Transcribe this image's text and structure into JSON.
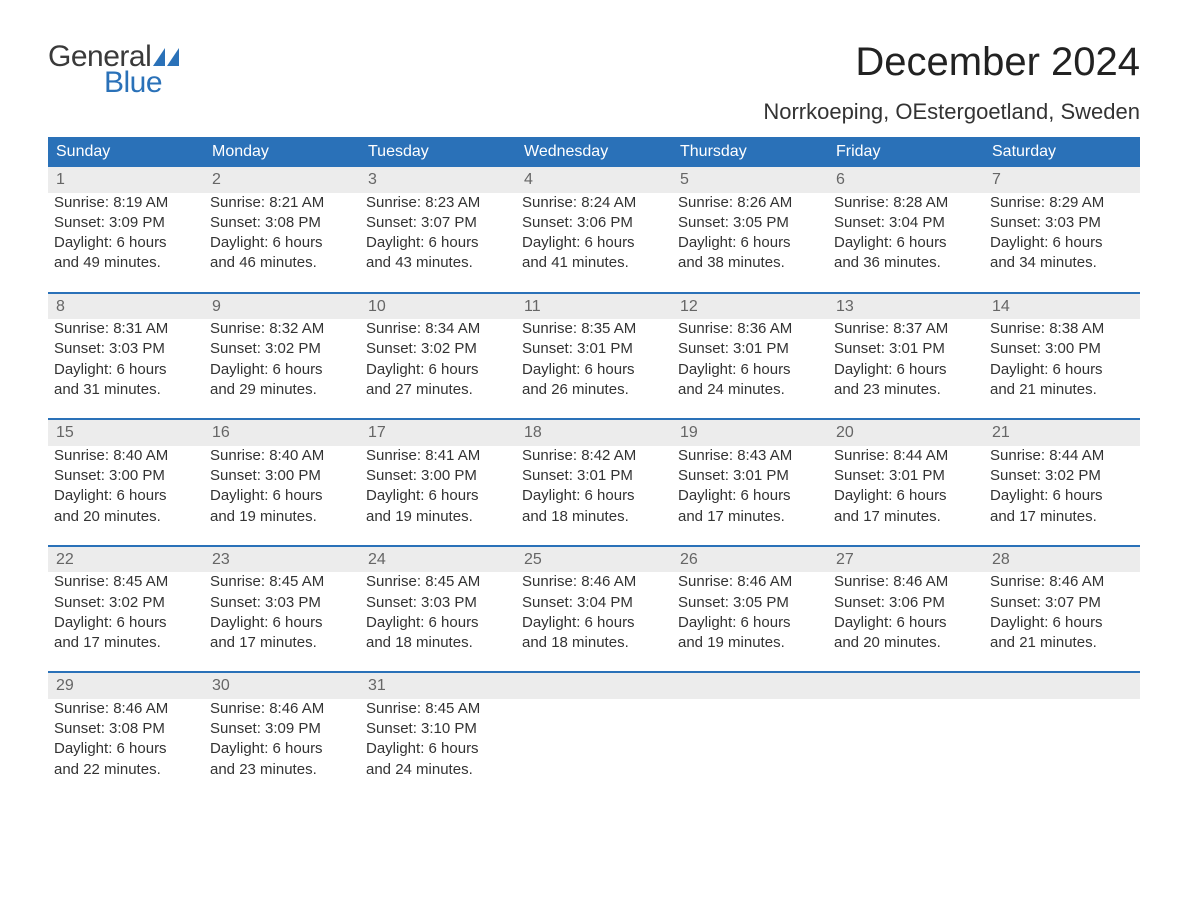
{
  "logo": {
    "text_general": "General",
    "text_blue": "Blue",
    "flag_color": "#2a71b8"
  },
  "title": "December 2024",
  "location": "Norrkoeping, OEstergoetland, Sweden",
  "colors": {
    "header_bg": "#2a71b8",
    "header_text": "#ffffff",
    "daynum_bg": "#ececec",
    "daynum_text": "#666666",
    "body_text": "#333333",
    "separator": "#2a71b8",
    "page_bg": "#ffffff"
  },
  "typography": {
    "title_fontsize": 40,
    "location_fontsize": 22,
    "header_fontsize": 16,
    "cell_fontsize": 15,
    "logo_fontsize": 30
  },
  "columns": [
    "Sunday",
    "Monday",
    "Tuesday",
    "Wednesday",
    "Thursday",
    "Friday",
    "Saturday"
  ],
  "weeks": [
    [
      {
        "day": "1",
        "sunrise": "Sunrise: 8:19 AM",
        "sunset": "Sunset: 3:09 PM",
        "dl1": "Daylight: 6 hours",
        "dl2": "and 49 minutes."
      },
      {
        "day": "2",
        "sunrise": "Sunrise: 8:21 AM",
        "sunset": "Sunset: 3:08 PM",
        "dl1": "Daylight: 6 hours",
        "dl2": "and 46 minutes."
      },
      {
        "day": "3",
        "sunrise": "Sunrise: 8:23 AM",
        "sunset": "Sunset: 3:07 PM",
        "dl1": "Daylight: 6 hours",
        "dl2": "and 43 minutes."
      },
      {
        "day": "4",
        "sunrise": "Sunrise: 8:24 AM",
        "sunset": "Sunset: 3:06 PM",
        "dl1": "Daylight: 6 hours",
        "dl2": "and 41 minutes."
      },
      {
        "day": "5",
        "sunrise": "Sunrise: 8:26 AM",
        "sunset": "Sunset: 3:05 PM",
        "dl1": "Daylight: 6 hours",
        "dl2": "and 38 minutes."
      },
      {
        "day": "6",
        "sunrise": "Sunrise: 8:28 AM",
        "sunset": "Sunset: 3:04 PM",
        "dl1": "Daylight: 6 hours",
        "dl2": "and 36 minutes."
      },
      {
        "day": "7",
        "sunrise": "Sunrise: 8:29 AM",
        "sunset": "Sunset: 3:03 PM",
        "dl1": "Daylight: 6 hours",
        "dl2": "and 34 minutes."
      }
    ],
    [
      {
        "day": "8",
        "sunrise": "Sunrise: 8:31 AM",
        "sunset": "Sunset: 3:03 PM",
        "dl1": "Daylight: 6 hours",
        "dl2": "and 31 minutes."
      },
      {
        "day": "9",
        "sunrise": "Sunrise: 8:32 AM",
        "sunset": "Sunset: 3:02 PM",
        "dl1": "Daylight: 6 hours",
        "dl2": "and 29 minutes."
      },
      {
        "day": "10",
        "sunrise": "Sunrise: 8:34 AM",
        "sunset": "Sunset: 3:02 PM",
        "dl1": "Daylight: 6 hours",
        "dl2": "and 27 minutes."
      },
      {
        "day": "11",
        "sunrise": "Sunrise: 8:35 AM",
        "sunset": "Sunset: 3:01 PM",
        "dl1": "Daylight: 6 hours",
        "dl2": "and 26 minutes."
      },
      {
        "day": "12",
        "sunrise": "Sunrise: 8:36 AM",
        "sunset": "Sunset: 3:01 PM",
        "dl1": "Daylight: 6 hours",
        "dl2": "and 24 minutes."
      },
      {
        "day": "13",
        "sunrise": "Sunrise: 8:37 AM",
        "sunset": "Sunset: 3:01 PM",
        "dl1": "Daylight: 6 hours",
        "dl2": "and 23 minutes."
      },
      {
        "day": "14",
        "sunrise": "Sunrise: 8:38 AM",
        "sunset": "Sunset: 3:00 PM",
        "dl1": "Daylight: 6 hours",
        "dl2": "and 21 minutes."
      }
    ],
    [
      {
        "day": "15",
        "sunrise": "Sunrise: 8:40 AM",
        "sunset": "Sunset: 3:00 PM",
        "dl1": "Daylight: 6 hours",
        "dl2": "and 20 minutes."
      },
      {
        "day": "16",
        "sunrise": "Sunrise: 8:40 AM",
        "sunset": "Sunset: 3:00 PM",
        "dl1": "Daylight: 6 hours",
        "dl2": "and 19 minutes."
      },
      {
        "day": "17",
        "sunrise": "Sunrise: 8:41 AM",
        "sunset": "Sunset: 3:00 PM",
        "dl1": "Daylight: 6 hours",
        "dl2": "and 19 minutes."
      },
      {
        "day": "18",
        "sunrise": "Sunrise: 8:42 AM",
        "sunset": "Sunset: 3:01 PM",
        "dl1": "Daylight: 6 hours",
        "dl2": "and 18 minutes."
      },
      {
        "day": "19",
        "sunrise": "Sunrise: 8:43 AM",
        "sunset": "Sunset: 3:01 PM",
        "dl1": "Daylight: 6 hours",
        "dl2": "and 17 minutes."
      },
      {
        "day": "20",
        "sunrise": "Sunrise: 8:44 AM",
        "sunset": "Sunset: 3:01 PM",
        "dl1": "Daylight: 6 hours",
        "dl2": "and 17 minutes."
      },
      {
        "day": "21",
        "sunrise": "Sunrise: 8:44 AM",
        "sunset": "Sunset: 3:02 PM",
        "dl1": "Daylight: 6 hours",
        "dl2": "and 17 minutes."
      }
    ],
    [
      {
        "day": "22",
        "sunrise": "Sunrise: 8:45 AM",
        "sunset": "Sunset: 3:02 PM",
        "dl1": "Daylight: 6 hours",
        "dl2": "and 17 minutes."
      },
      {
        "day": "23",
        "sunrise": "Sunrise: 8:45 AM",
        "sunset": "Sunset: 3:03 PM",
        "dl1": "Daylight: 6 hours",
        "dl2": "and 17 minutes."
      },
      {
        "day": "24",
        "sunrise": "Sunrise: 8:45 AM",
        "sunset": "Sunset: 3:03 PM",
        "dl1": "Daylight: 6 hours",
        "dl2": "and 18 minutes."
      },
      {
        "day": "25",
        "sunrise": "Sunrise: 8:46 AM",
        "sunset": "Sunset: 3:04 PM",
        "dl1": "Daylight: 6 hours",
        "dl2": "and 18 minutes."
      },
      {
        "day": "26",
        "sunrise": "Sunrise: 8:46 AM",
        "sunset": "Sunset: 3:05 PM",
        "dl1": "Daylight: 6 hours",
        "dl2": "and 19 minutes."
      },
      {
        "day": "27",
        "sunrise": "Sunrise: 8:46 AM",
        "sunset": "Sunset: 3:06 PM",
        "dl1": "Daylight: 6 hours",
        "dl2": "and 20 minutes."
      },
      {
        "day": "28",
        "sunrise": "Sunrise: 8:46 AM",
        "sunset": "Sunset: 3:07 PM",
        "dl1": "Daylight: 6 hours",
        "dl2": "and 21 minutes."
      }
    ],
    [
      {
        "day": "29",
        "sunrise": "Sunrise: 8:46 AM",
        "sunset": "Sunset: 3:08 PM",
        "dl1": "Daylight: 6 hours",
        "dl2": "and 22 minutes."
      },
      {
        "day": "30",
        "sunrise": "Sunrise: 8:46 AM",
        "sunset": "Sunset: 3:09 PM",
        "dl1": "Daylight: 6 hours",
        "dl2": "and 23 minutes."
      },
      {
        "day": "31",
        "sunrise": "Sunrise: 8:45 AM",
        "sunset": "Sunset: 3:10 PM",
        "dl1": "Daylight: 6 hours",
        "dl2": "and 24 minutes."
      },
      null,
      null,
      null,
      null
    ]
  ]
}
